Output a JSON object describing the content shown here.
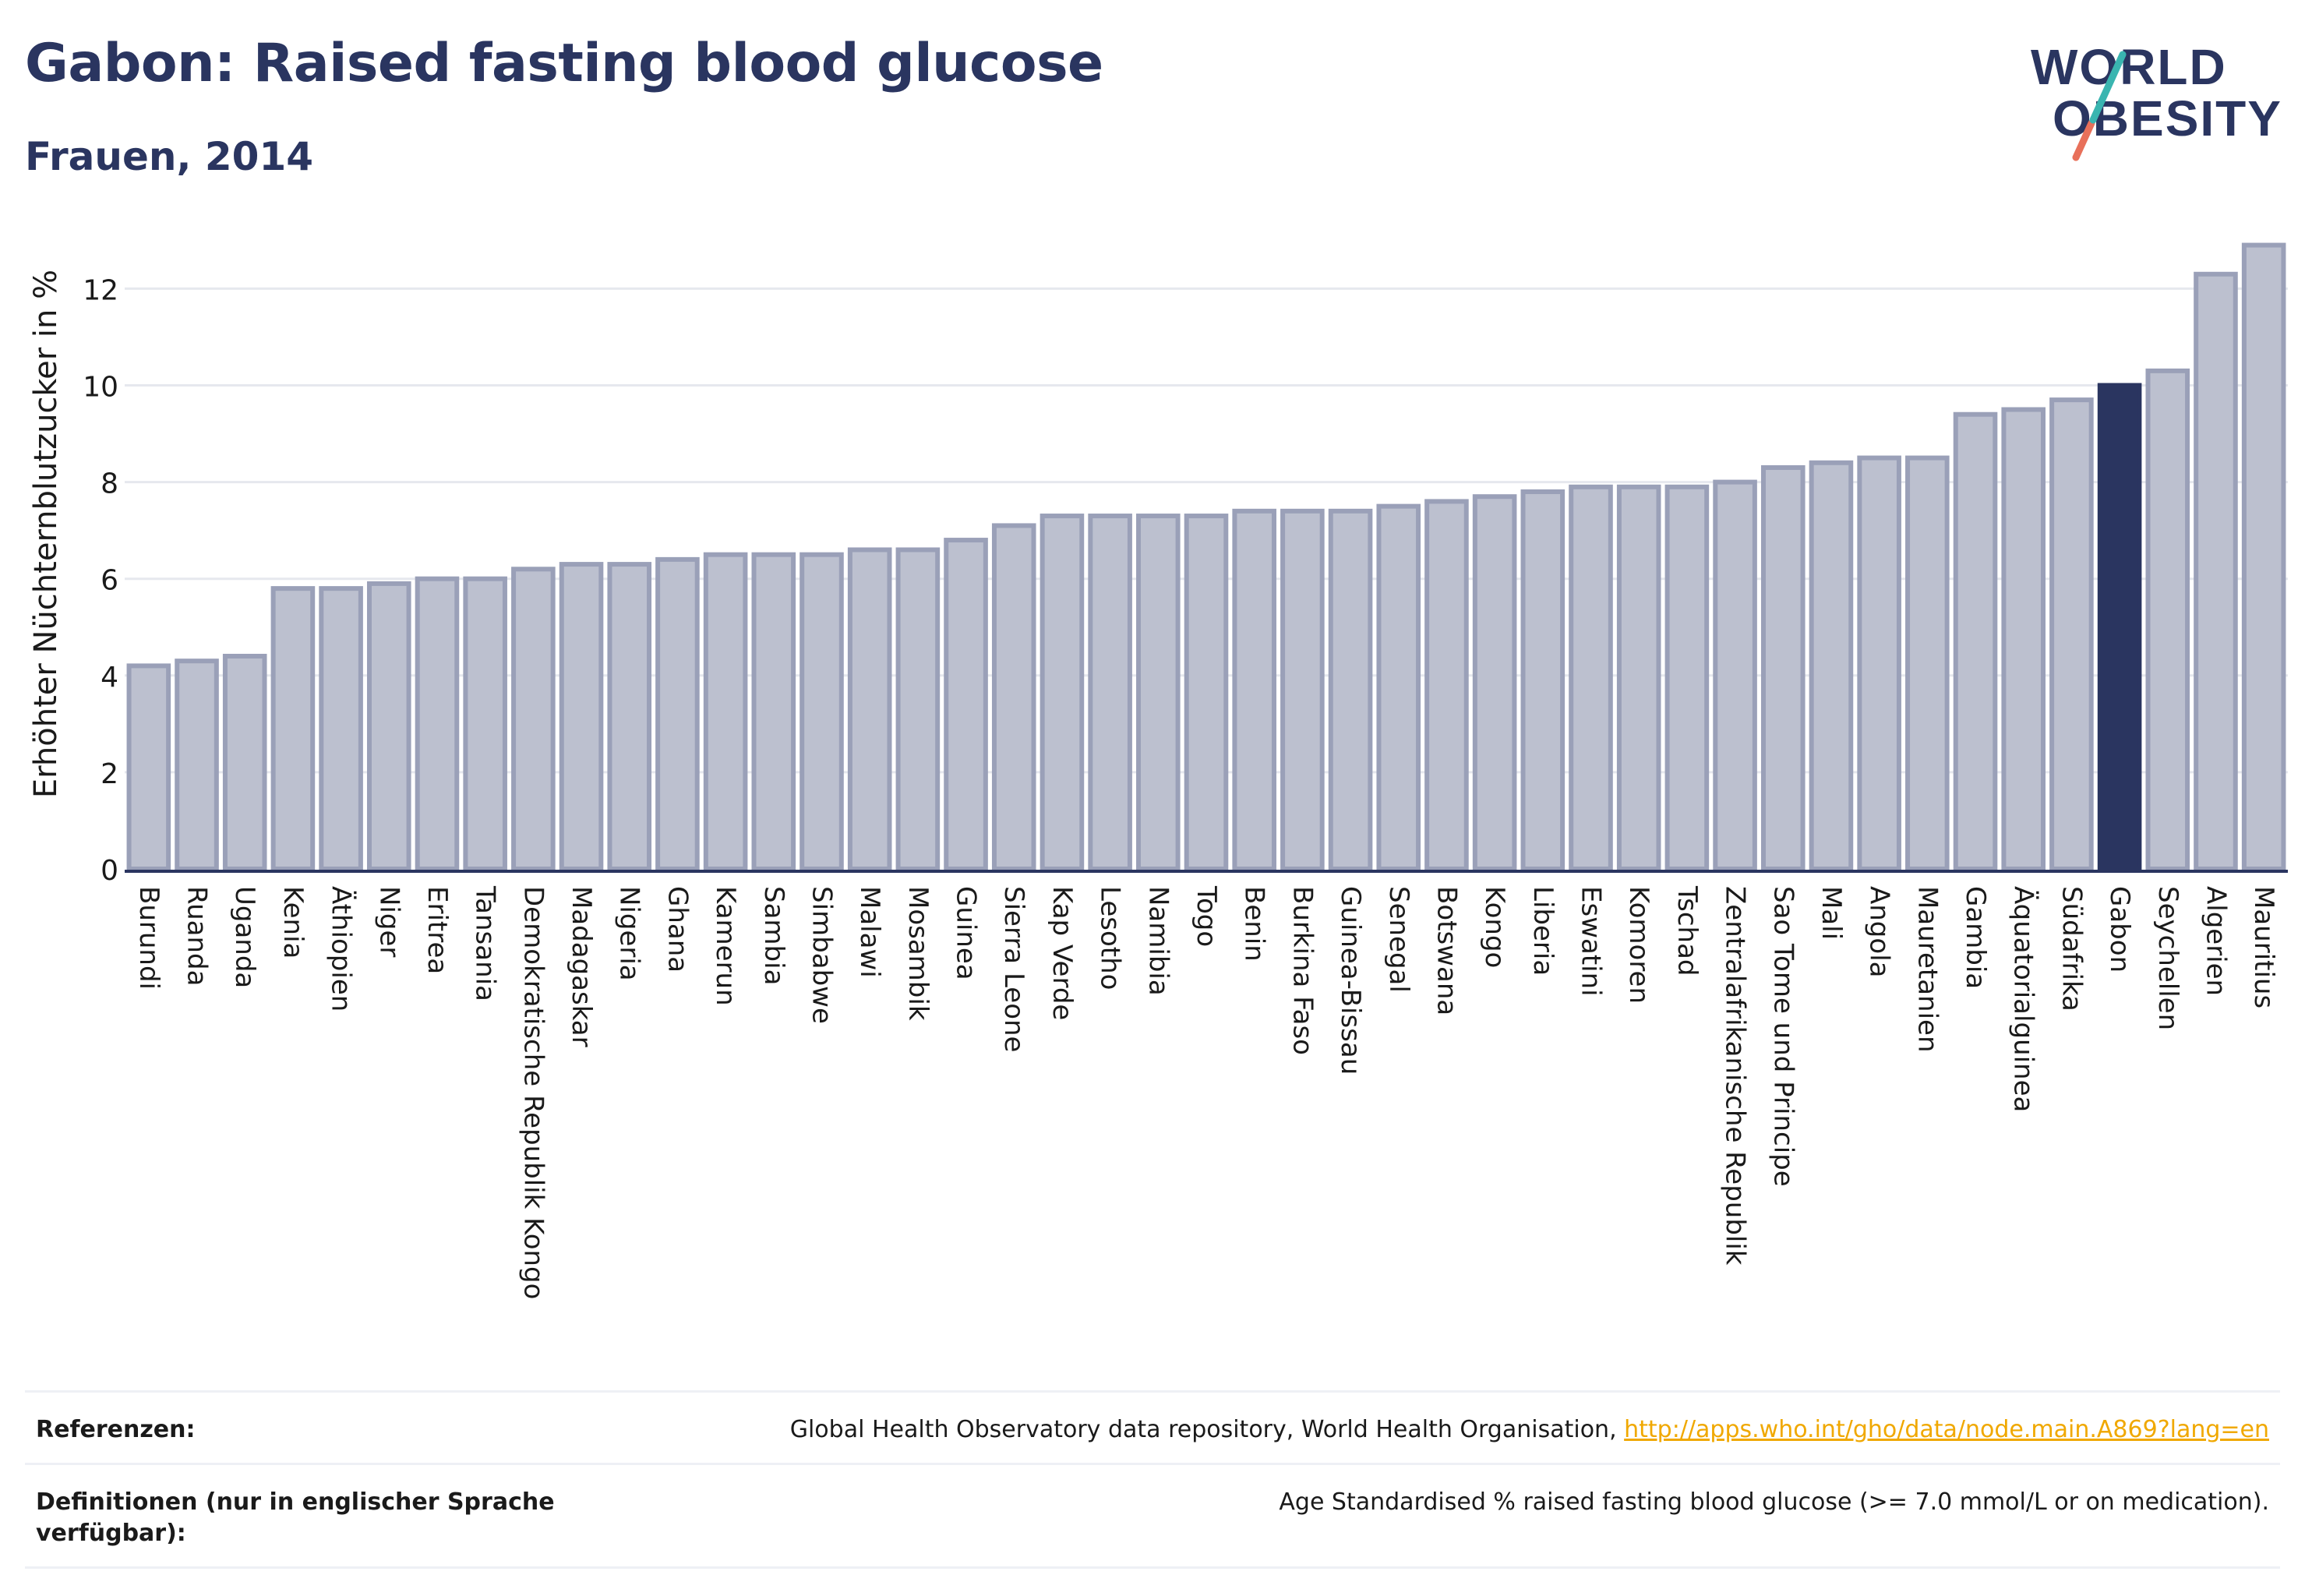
{
  "header": {
    "title": "Gabon: Raised fasting blood glucose",
    "subtitle": "Frauen, 2014"
  },
  "logo": {
    "line1": "WORLD",
    "line2": "OBESITY",
    "colors": {
      "text": "#2a3560",
      "slash_top": "#3ab5b0",
      "slash_bottom": "#e8705a"
    }
  },
  "chart_data": {
    "type": "bar",
    "ylabel": "Erhöhter Nüchternblutzucker in %",
    "ylim": [
      0,
      13.2
    ],
    "yticks": [
      0,
      2,
      4,
      6,
      8,
      10,
      12
    ],
    "grid": true,
    "highlight": "Gabon",
    "colors": {
      "bar": "#bcc0cf",
      "bar_edge": "#9aa0b8",
      "highlight": "#2a3560",
      "grid": "#e6e8ee",
      "axis": "#2a3560"
    },
    "categories": [
      "Burundi",
      "Ruanda",
      "Uganda",
      "Kenia",
      "Äthiopien",
      "Niger",
      "Eritrea",
      "Tansania",
      "Demokratische Republik Kongo",
      "Madagaskar",
      "Nigeria",
      "Ghana",
      "Kamerun",
      "Sambia",
      "Simbabwe",
      "Malawi",
      "Mosambik",
      "Guinea",
      "Sierra Leone",
      "Kap Verde",
      "Lesotho",
      "Namibia",
      "Togo",
      "Benin",
      "Burkina Faso",
      "Guinea-Bissau",
      "Senegal",
      "Botswana",
      "Kongo",
      "Liberia",
      "Eswatini",
      "Komoren",
      "Tschad",
      "Zentralafrikanische Republik",
      "Sao Tome und Principe",
      "Mali",
      "Angola",
      "Mauretanien",
      "Gambia",
      "Äquatorialguinea",
      "Südafrika",
      "Gabon",
      "Seychellen",
      "Algerien",
      "Mauritius"
    ],
    "values": [
      4.2,
      4.3,
      4.4,
      5.8,
      5.8,
      5.9,
      6.0,
      6.0,
      6.2,
      6.3,
      6.3,
      6.4,
      6.5,
      6.5,
      6.5,
      6.6,
      6.6,
      6.8,
      7.1,
      7.3,
      7.3,
      7.3,
      7.3,
      7.4,
      7.4,
      7.4,
      7.5,
      7.6,
      7.7,
      7.8,
      7.9,
      7.9,
      7.9,
      8.0,
      8.3,
      8.4,
      8.5,
      8.5,
      9.4,
      9.5,
      9.7,
      10.0,
      10.3,
      12.3,
      12.9
    ]
  },
  "references": {
    "refs_label": "Referenzen:",
    "refs_text": "Global Health Observatory data repository, World Health Organisation, ",
    "refs_link": "http://apps.who.int/gho/data/node.main.A869?lang=en",
    "defs_label": "Definitionen (nur in englischer Sprache verfügbar):",
    "defs_text": "Age Standardised % raised fasting blood glucose (>= 7.0 mmol/L or on medication)."
  }
}
